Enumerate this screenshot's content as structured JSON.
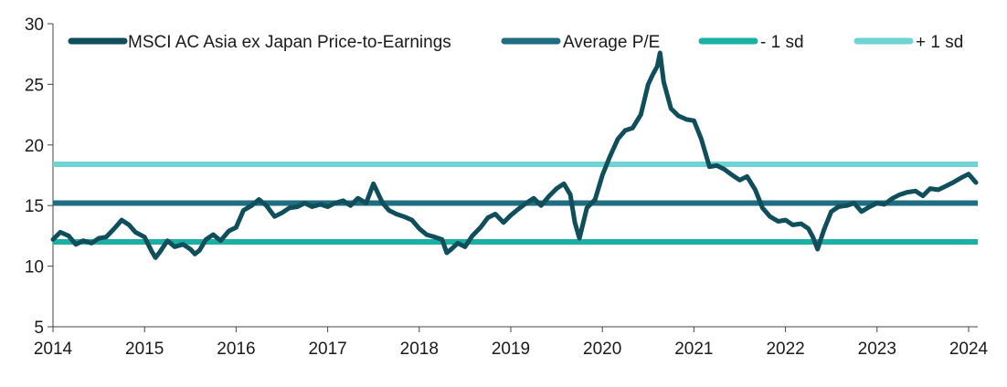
{
  "chart_data": {
    "type": "line",
    "title": "",
    "xlabel": "",
    "ylabel": "",
    "xlim": [
      2014.0,
      2024.1
    ],
    "ylim": [
      5,
      30
    ],
    "x_ticks": [
      2014,
      2015,
      2016,
      2017,
      2018,
      2019,
      2020,
      2021,
      2022,
      2023,
      2024
    ],
    "x_tick_labels": [
      "2014",
      "2015",
      "2016",
      "2017",
      "2018",
      "2019",
      "2020",
      "2021",
      "2022",
      "2023",
      "2024"
    ],
    "y_ticks": [
      5,
      10,
      15,
      20,
      25,
      30
    ],
    "y_tick_labels": [
      "5",
      "10",
      "15",
      "20",
      "25",
      "30"
    ],
    "grid": false,
    "legend_position": "top",
    "series": [
      {
        "name": "MSCI AC Asia ex Japan Price-to-Earnings",
        "color": "#0f4e5a",
        "x": [
          2014.0,
          2014.08,
          2014.17,
          2014.25,
          2014.33,
          2014.42,
          2014.5,
          2014.58,
          2014.67,
          2014.75,
          2014.83,
          2014.9,
          2015.0,
          2015.08,
          2015.12,
          2015.17,
          2015.25,
          2015.33,
          2015.42,
          2015.5,
          2015.55,
          2015.6,
          2015.67,
          2015.75,
          2015.83,
          2015.92,
          2016.0,
          2016.08,
          2016.17,
          2016.25,
          2016.33,
          2016.42,
          2016.5,
          2016.58,
          2016.67,
          2016.75,
          2016.83,
          2016.92,
          2017.0,
          2017.08,
          2017.17,
          2017.25,
          2017.33,
          2017.42,
          2017.5,
          2017.55,
          2017.6,
          2017.67,
          2017.75,
          2017.83,
          2017.92,
          2018.0,
          2018.08,
          2018.17,
          2018.25,
          2018.3,
          2018.35,
          2018.42,
          2018.5,
          2018.58,
          2018.67,
          2018.75,
          2018.83,
          2018.92,
          2019.0,
          2019.08,
          2019.17,
          2019.25,
          2019.33,
          2019.42,
          2019.5,
          2019.58,
          2019.65,
          2019.7,
          2019.75,
          2019.83,
          2019.92,
          2020.0,
          2020.08,
          2020.17,
          2020.25,
          2020.33,
          2020.42,
          2020.5,
          2020.55,
          2020.6,
          2020.63,
          2020.67,
          2020.75,
          2020.83,
          2020.92,
          2021.0,
          2021.08,
          2021.17,
          2021.25,
          2021.33,
          2021.42,
          2021.5,
          2021.58,
          2021.67,
          2021.75,
          2021.83,
          2021.92,
          2022.0,
          2022.08,
          2022.17,
          2022.25,
          2022.3,
          2022.35,
          2022.42,
          2022.5,
          2022.58,
          2022.67,
          2022.75,
          2022.83,
          2022.92,
          2023.0,
          2023.08,
          2023.17,
          2023.25,
          2023.33,
          2023.42,
          2023.5,
          2023.58,
          2023.67,
          2023.75,
          2023.83,
          2023.92,
          2024.0,
          2024.08
        ],
        "values": [
          12.2,
          12.8,
          12.5,
          11.8,
          12.1,
          11.9,
          12.3,
          12.4,
          13.1,
          13.8,
          13.4,
          12.8,
          12.4,
          11.2,
          10.7,
          11.2,
          12.1,
          11.6,
          11.8,
          11.4,
          11.0,
          11.3,
          12.2,
          12.6,
          12.1,
          12.9,
          13.2,
          14.6,
          15.0,
          15.5,
          15.0,
          14.1,
          14.4,
          14.8,
          14.9,
          15.2,
          14.9,
          15.1,
          14.9,
          15.2,
          15.4,
          15.0,
          15.6,
          15.2,
          16.8,
          16.0,
          15.2,
          14.6,
          14.3,
          14.1,
          13.8,
          13.1,
          12.6,
          12.4,
          12.2,
          11.1,
          11.4,
          11.9,
          11.6,
          12.5,
          13.2,
          14.0,
          14.3,
          13.6,
          14.2,
          14.7,
          15.2,
          15.6,
          15.0,
          15.8,
          16.4,
          16.8,
          15.9,
          13.6,
          12.3,
          14.8,
          15.5,
          17.5,
          19.0,
          20.5,
          21.2,
          21.4,
          22.5,
          25.0,
          25.8,
          26.5,
          27.6,
          25.2,
          23.0,
          22.4,
          22.1,
          22.0,
          20.5,
          18.2,
          18.3,
          18.0,
          17.5,
          17.1,
          17.4,
          16.3,
          14.8,
          14.1,
          13.7,
          13.8,
          13.4,
          13.5,
          13.1,
          12.4,
          11.4,
          13.0,
          14.5,
          14.9,
          15.0,
          15.2,
          14.5,
          14.9,
          15.2,
          15.1,
          15.6,
          15.9,
          16.1,
          16.2,
          15.8,
          16.4,
          16.3,
          16.6,
          16.9,
          17.3,
          17.6,
          16.9
        ]
      },
      {
        "name": "Average P/E",
        "color": "#1f6d80",
        "constant": 15.2
      },
      {
        "name": "- 1 sd",
        "color": "#1ab0a4",
        "constant": 12.0
      },
      {
        "name": "+ 1 sd",
        "color": "#6fd3d3",
        "constant": 18.4
      }
    ]
  }
}
